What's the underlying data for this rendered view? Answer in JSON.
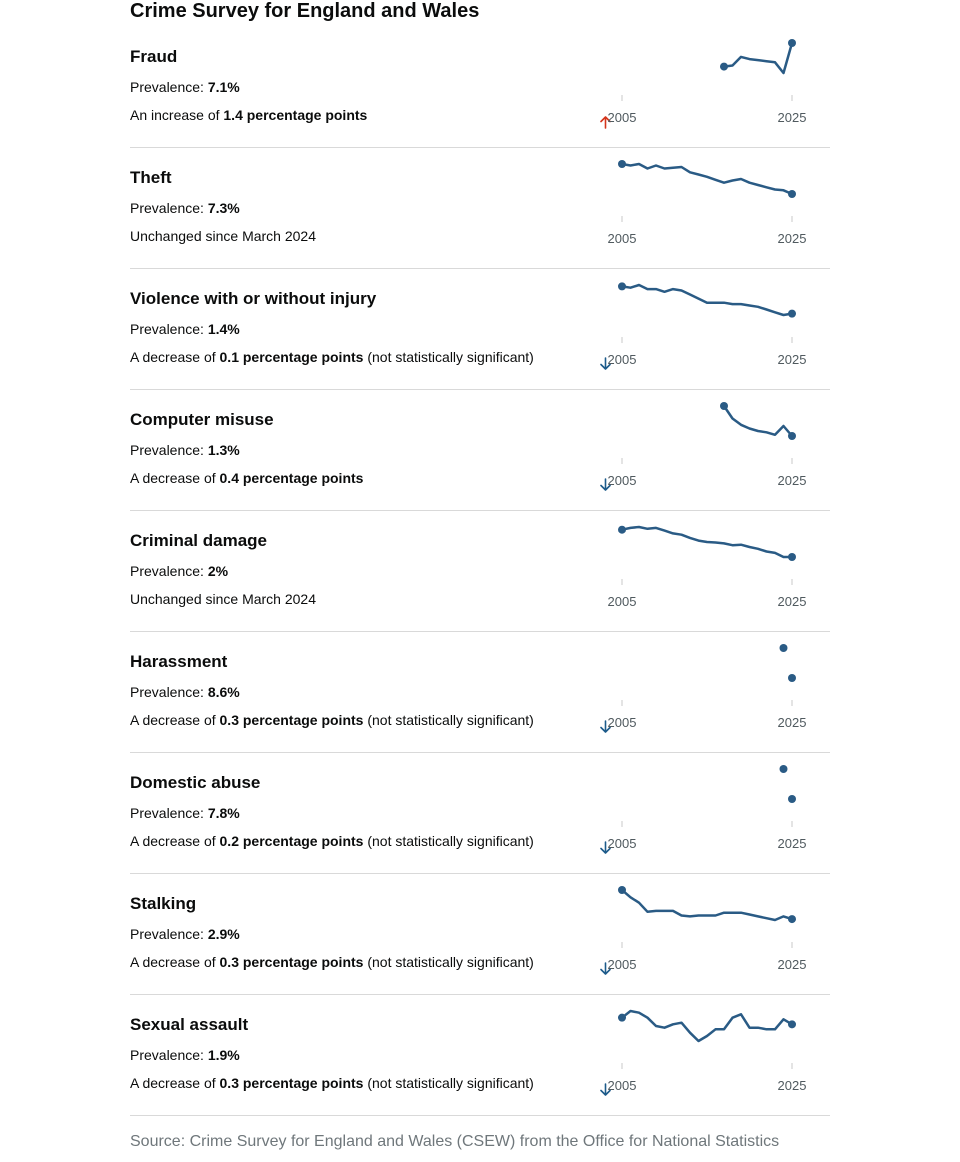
{
  "title": "Crime Survey for England and Wales",
  "source": "Source: Crime Survey for England and Wales (CSEW) from the Office for National Statistics",
  "colors": {
    "line": "#2a5b85",
    "increase": "#d4351c",
    "decrease": "#1d5b8a",
    "divider": "#d9d9d9",
    "axis_text": "#505a5f"
  },
  "chart_data": [
    {
      "type": "line",
      "title": "Fraud",
      "prevalence_label": "Prevalence: ",
      "prevalence": "7.1%",
      "change": {
        "prefix": "An increase of ",
        "amount": "1.4 percentage points",
        "direction": "up",
        "suffix": "",
        "text": ""
      },
      "x_ticks": [
        "2005",
        "2025"
      ],
      "xlim": [
        2005,
        2025
      ],
      "x": [
        2017,
        2018,
        2019,
        2020,
        2021,
        2022,
        2023,
        2024,
        2025
      ],
      "y": [
        6.0,
        6.05,
        6.45,
        6.35,
        6.3,
        6.25,
        6.2,
        5.7,
        7.1
      ]
    },
    {
      "type": "line",
      "title": "Theft",
      "prevalence_label": "Prevalence: ",
      "prevalence": "7.3%",
      "change": {
        "prefix": "",
        "amount": "",
        "direction": "none",
        "suffix": "",
        "text": "Unchanged since March 2024"
      },
      "x_ticks": [
        "2005",
        "2025"
      ],
      "xlim": [
        2005,
        2025
      ],
      "x": [
        2005,
        2006,
        2007,
        2008,
        2009,
        2010,
        2011,
        2012,
        2013,
        2014,
        2015,
        2016,
        2017,
        2018,
        2019,
        2020,
        2021,
        2022,
        2023,
        2024,
        2025
      ],
      "y": [
        11.3,
        11.1,
        11.3,
        10.7,
        11.1,
        10.7,
        10.8,
        10.9,
        10.2,
        9.9,
        9.6,
        9.2,
        8.8,
        9.1,
        9.3,
        8.8,
        8.5,
        8.2,
        7.9,
        7.8,
        7.3
      ]
    },
    {
      "type": "line",
      "title": "Violence with or without injury",
      "prevalence_label": "Prevalence: ",
      "prevalence": "1.4%",
      "change": {
        "prefix": "A decrease of ",
        "amount": "0.1 percentage points",
        "direction": "down",
        "suffix": " (not statistically significant)",
        "text": ""
      },
      "x_ticks": [
        "2005",
        "2025"
      ],
      "xlim": [
        2005,
        2025
      ],
      "x": [
        2005,
        2006,
        2007,
        2008,
        2009,
        2010,
        2011,
        2012,
        2013,
        2014,
        2015,
        2016,
        2017,
        2018,
        2019,
        2020,
        2021,
        2022,
        2023,
        2024,
        2025
      ],
      "y": [
        2.4,
        2.35,
        2.45,
        2.3,
        2.3,
        2.2,
        2.3,
        2.25,
        2.1,
        1.95,
        1.8,
        1.8,
        1.8,
        1.75,
        1.75,
        1.7,
        1.65,
        1.55,
        1.45,
        1.35,
        1.4
      ]
    },
    {
      "type": "line",
      "title": "Computer misuse",
      "prevalence_label": "Prevalence: ",
      "prevalence": "1.3%",
      "change": {
        "prefix": "A decrease of ",
        "amount": "0.4 percentage points",
        "direction": "down",
        "suffix": "",
        "text": ""
      },
      "x_ticks": [
        "2005",
        "2025"
      ],
      "xlim": [
        2005,
        2025
      ],
      "x": [
        2017,
        2018,
        2019,
        2020,
        2021,
        2022,
        2023,
        2024,
        2025
      ],
      "y": [
        2.5,
        2.0,
        1.75,
        1.6,
        1.5,
        1.45,
        1.35,
        1.7,
        1.3
      ]
    },
    {
      "type": "line",
      "title": "Criminal damage",
      "prevalence_label": "Prevalence: ",
      "prevalence": "2%",
      "change": {
        "prefix": "",
        "amount": "",
        "direction": "none",
        "suffix": "",
        "text": "Unchanged since March 2024"
      },
      "x_ticks": [
        "2005",
        "2025"
      ],
      "xlim": [
        2005,
        2025
      ],
      "x": [
        2005,
        2006,
        2007,
        2008,
        2009,
        2010,
        2011,
        2012,
        2013,
        2014,
        2015,
        2016,
        2017,
        2018,
        2019,
        2020,
        2021,
        2022,
        2023,
        2024,
        2025
      ],
      "y": [
        5.0,
        5.2,
        5.3,
        5.1,
        5.2,
        4.9,
        4.6,
        4.45,
        4.1,
        3.8,
        3.65,
        3.6,
        3.5,
        3.3,
        3.35,
        3.1,
        2.9,
        2.6,
        2.45,
        2.0,
        2.0
      ]
    },
    {
      "type": "line",
      "title": "Harassment",
      "prevalence_label": "Prevalence: ",
      "prevalence": "8.6%",
      "change": {
        "prefix": "A decrease of ",
        "amount": "0.3 percentage points",
        "direction": "down",
        "suffix": " (not statistically significant)",
        "text": ""
      },
      "x_ticks": [
        "2005",
        "2025"
      ],
      "xlim": [
        2005,
        2025
      ],
      "x": [
        2024,
        2025
      ],
      "y": [
        8.9,
        8.6
      ]
    },
    {
      "type": "line",
      "title": "Domestic abuse",
      "prevalence_label": "Prevalence: ",
      "prevalence": "7.8%",
      "change": {
        "prefix": "A decrease of ",
        "amount": "0.2 percentage points",
        "direction": "down",
        "suffix": " (not statistically significant)",
        "text": ""
      },
      "x_ticks": [
        "2005",
        "2025"
      ],
      "xlim": [
        2005,
        2025
      ],
      "x": [
        2024,
        2025
      ],
      "y": [
        8.0,
        7.8
      ]
    },
    {
      "type": "line",
      "title": "Stalking",
      "prevalence_label": "Prevalence: ",
      "prevalence": "2.9%",
      "change": {
        "prefix": "A decrease of ",
        "amount": "0.3 percentage points",
        "direction": "down",
        "suffix": " (not statistically significant)",
        "text": ""
      },
      "x_ticks": [
        "2005",
        "2025"
      ],
      "xlim": [
        2005,
        2025
      ],
      "x": [
        2005,
        2006,
        2007,
        2008,
        2009,
        2010,
        2011,
        2012,
        2013,
        2014,
        2015,
        2016,
        2017,
        2018,
        2019,
        2020,
        2021,
        2022,
        2023,
        2024,
        2025
      ],
      "y": [
        4.5,
        4.1,
        3.8,
        3.3,
        3.35,
        3.35,
        3.35,
        3.1,
        3.05,
        3.1,
        3.1,
        3.1,
        3.25,
        3.25,
        3.25,
        3.15,
        3.05,
        2.95,
        2.85,
        3.05,
        2.9
      ]
    },
    {
      "type": "line",
      "title": "Sexual assault",
      "prevalence_label": "Prevalence: ",
      "prevalence": "1.9%",
      "change": {
        "prefix": "A decrease of ",
        "amount": "0.3 percentage points",
        "direction": "down",
        "suffix": " (not statistically significant)",
        "text": ""
      },
      "x_ticks": [
        "2005",
        "2025"
      ],
      "xlim": [
        2005,
        2025
      ],
      "x": [
        2005,
        2006,
        2007,
        2008,
        2009,
        2010,
        2011,
        2012,
        2013,
        2014,
        2015,
        2016,
        2017,
        2018,
        2019,
        2020,
        2021,
        2022,
        2023,
        2024,
        2025
      ],
      "y": [
        2.1,
        2.3,
        2.25,
        2.1,
        1.85,
        1.8,
        1.9,
        1.95,
        1.65,
        1.4,
        1.55,
        1.75,
        1.75,
        2.1,
        2.2,
        1.8,
        1.8,
        1.75,
        1.75,
        2.05,
        1.9
      ]
    }
  ]
}
